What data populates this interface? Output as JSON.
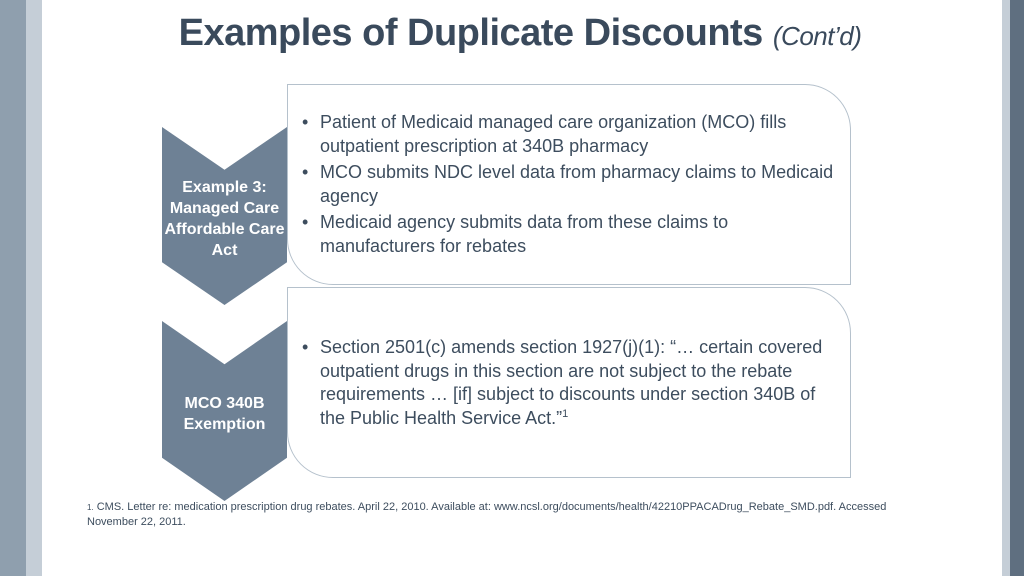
{
  "title": {
    "main": "Examples of Duplicate Discounts",
    "sub": "(Cont’d)"
  },
  "sections": [
    {
      "label": "Example 3: Managed Care Affordable Care Act",
      "bullets": [
        "Patient of Medicaid managed care organization (MCO) fills outpatient prescription at 340B pharmacy",
        "MCO submits NDC level data from pharmacy claims to Medicaid agency",
        "Medicaid agency submits data from these claims to manufacturers for rebates"
      ]
    },
    {
      "label": "MCO 340B Exemption",
      "bullets": [
        "Section 2501(c) amends section 1927(j)(1): “… certain covered outpatient drugs in this section are not subject to the rebate requirements … [if] subject to discounts under section 340B of the Public Health Service Act.”"
      ],
      "superscript": "1"
    }
  ],
  "footnote": {
    "marker": "1.",
    "text": "CMS. Letter re: medication prescription drug rebates. April 22, 2010. Available at: www.ncsl.org/documents/health/42210PPACADrug_Rebate_SMD.pdf. Accessed November 22, 2011."
  },
  "colors": {
    "title": "#3a4a5c",
    "chevron": "#6e8195",
    "card_border": "#b5c1cc",
    "band_left_outer": "#8f9fae",
    "band_left_inner": "#c5ced7",
    "band_right_outer": "#5f6f80"
  }
}
